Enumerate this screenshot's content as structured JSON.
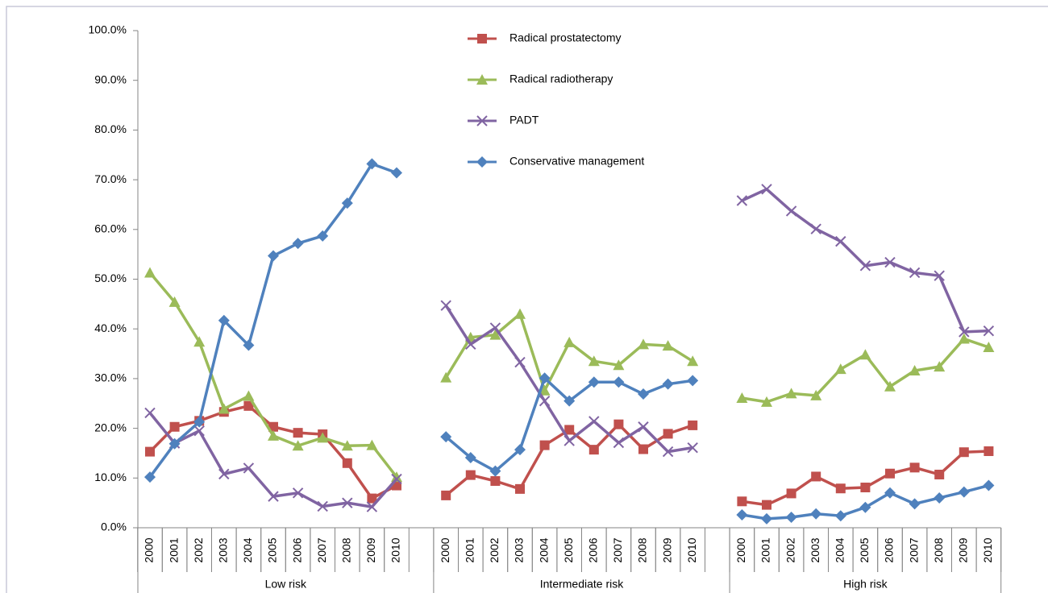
{
  "chart_data": {
    "type": "line",
    "categories": [
      "2000",
      "2001",
      "2002",
      "2003",
      "2004",
      "2005",
      "2006",
      "2007",
      "2008",
      "2009",
      "2010",
      null,
      "2000",
      "2001",
      "2002",
      "2003",
      "2004",
      "2005",
      "2006",
      "2007",
      "2008",
      "2009",
      "2010",
      null,
      "2000",
      "2001",
      "2002",
      "2003",
      "2004",
      "2005",
      "2006",
      "2007",
      "2008",
      "2009",
      "2010"
    ],
    "groups": [
      "Low risk",
      "Intermediate risk",
      "High risk"
    ],
    "ylim": [
      0,
      100
    ],
    "yticks": [
      {
        "value": 0,
        "label": "0.0%"
      },
      {
        "value": 10,
        "label": "10.0%"
      },
      {
        "value": 20,
        "label": "20.0%"
      },
      {
        "value": 30,
        "label": "30.0%"
      },
      {
        "value": 40,
        "label": "40.0%"
      },
      {
        "value": 50,
        "label": "50.0%"
      },
      {
        "value": 60,
        "label": "60.0%"
      },
      {
        "value": 70,
        "label": "70.0%"
      },
      {
        "value": 80,
        "label": "80.0%"
      },
      {
        "value": 90,
        "label": "90.0%"
      },
      {
        "value": 100,
        "label": "100.0%"
      }
    ],
    "grid": false,
    "legend": "top",
    "series": [
      {
        "name": "Radical prostatectomy",
        "color": "#c0504d",
        "marker": "square",
        "values": [
          15.3,
          20.3,
          21.5,
          23.3,
          24.5,
          20.3,
          19.1,
          18.8,
          13.0,
          5.9,
          8.5,
          null,
          6.5,
          10.6,
          9.4,
          7.8,
          16.6,
          19.7,
          15.7,
          20.8,
          15.8,
          18.9,
          20.6,
          null,
          5.3,
          4.6,
          6.9,
          10.3,
          7.9,
          8.1,
          10.9,
          12.1,
          10.7,
          15.2,
          15.4
        ]
      },
      {
        "name": "Radical radiotherapy",
        "color": "#9bbb59",
        "marker": "triangle",
        "values": [
          51.3,
          45.4,
          37.4,
          23.9,
          26.5,
          18.5,
          16.5,
          18.1,
          16.5,
          16.6,
          10.2,
          null,
          30.2,
          38.3,
          38.8,
          43.0,
          27.6,
          37.3,
          33.5,
          32.7,
          36.9,
          36.6,
          33.5,
          null,
          26.1,
          25.3,
          27.0,
          26.6,
          31.9,
          34.8,
          28.4,
          31.6,
          32.4,
          38.0,
          36.3
        ]
      },
      {
        "name": "PADT",
        "color": "#8064a2",
        "marker": "x",
        "values": [
          23.1,
          17.0,
          19.5,
          10.8,
          12.0,
          6.3,
          7.0,
          4.3,
          5.0,
          4.2,
          9.8,
          null,
          44.7,
          36.9,
          40.2,
          33.3,
          25.5,
          17.5,
          21.4,
          17.1,
          20.3,
          15.3,
          16.1,
          null,
          65.8,
          68.1,
          63.7,
          60.1,
          57.6,
          52.7,
          53.4,
          51.3,
          50.7,
          39.4,
          39.6
        ]
      },
      {
        "name": "Conservative management",
        "color": "#4f81bd",
        "marker": "diamond",
        "values": [
          10.2,
          16.9,
          21.3,
          41.7,
          36.7,
          54.7,
          57.2,
          58.7,
          65.3,
          73.2,
          71.4,
          null,
          18.3,
          14.1,
          11.4,
          15.7,
          30.1,
          25.5,
          29.3,
          29.3,
          26.9,
          28.9,
          29.6,
          null,
          2.6,
          1.8,
          2.1,
          2.8,
          2.4,
          4.1,
          7.0,
          4.8,
          6.0,
          7.2,
          8.5
        ]
      }
    ]
  }
}
